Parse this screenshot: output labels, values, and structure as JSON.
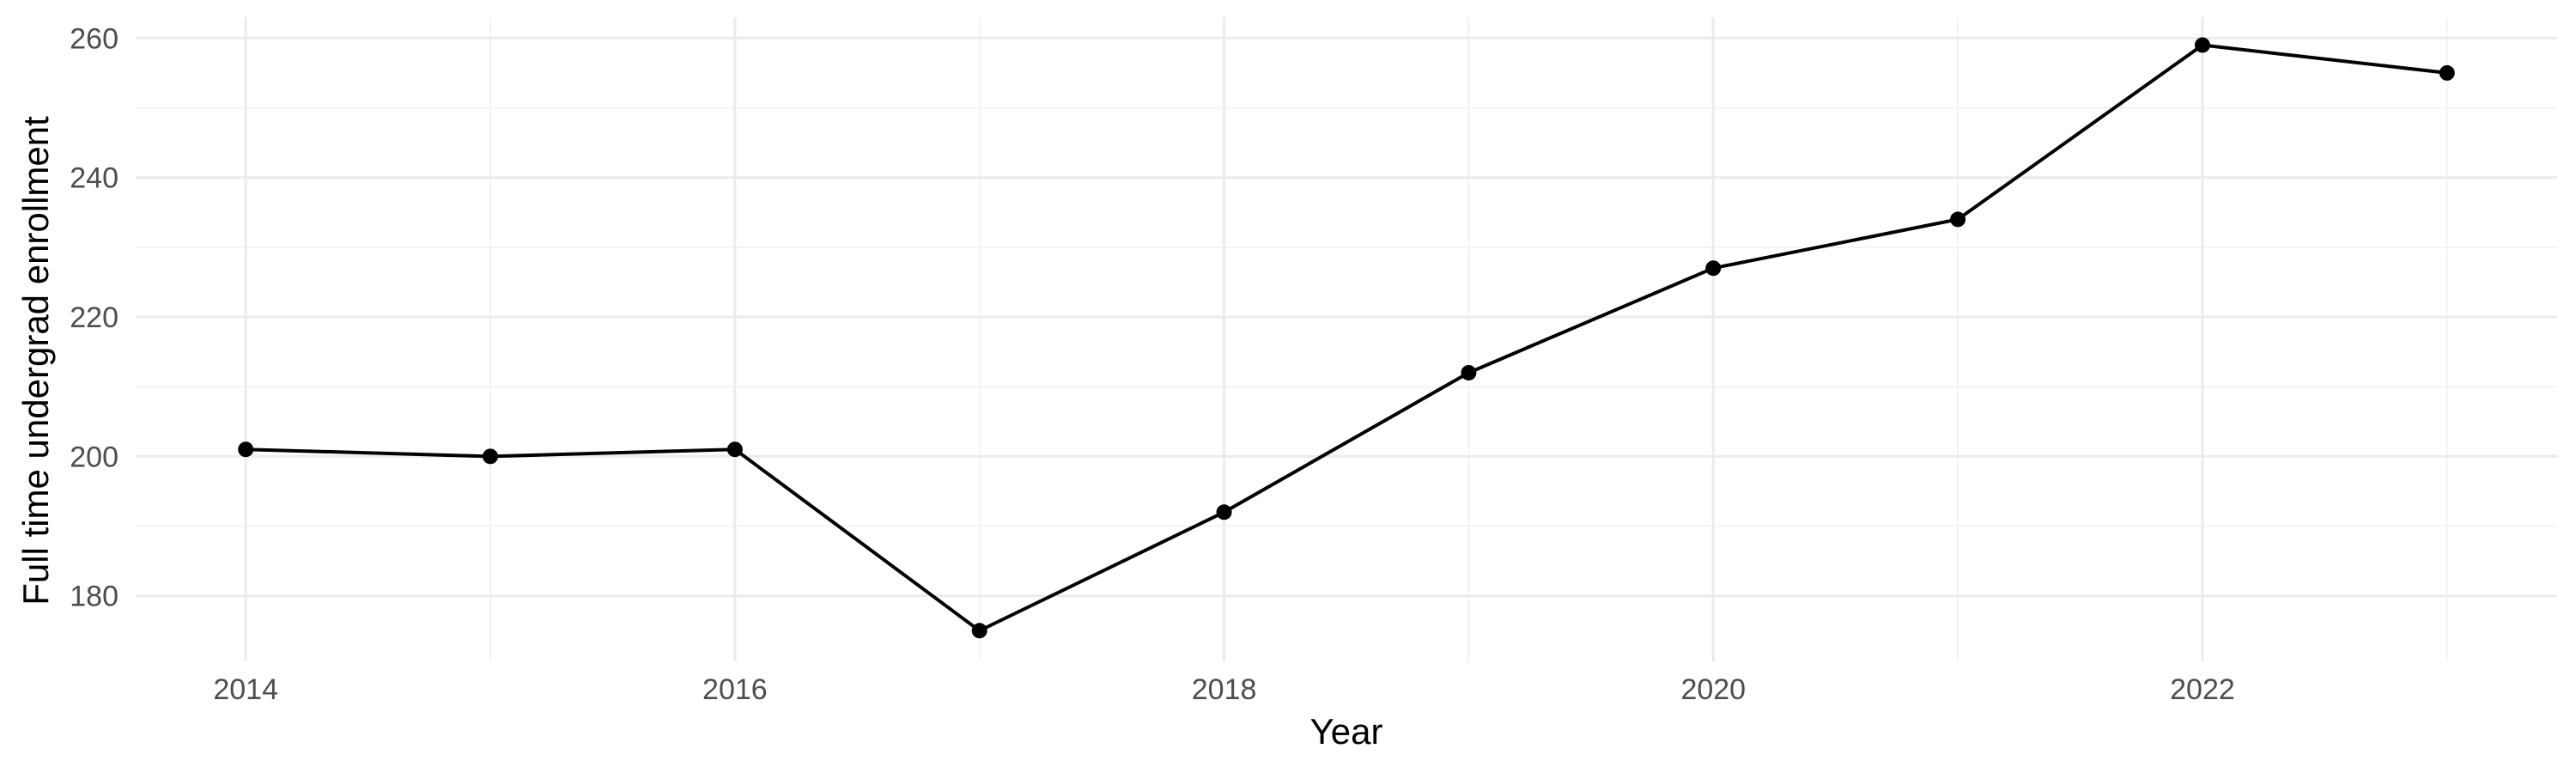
{
  "chart_data": {
    "type": "line",
    "title": "",
    "xlabel": "Year",
    "ylabel": "Full time undergrad enrollment",
    "x": [
      2014,
      2015,
      2016,
      2017,
      2018,
      2019,
      2020,
      2021,
      2022,
      2023
    ],
    "series": [
      {
        "values": [
          201,
          200,
          201,
          175,
          192,
          212,
          227,
          234,
          259,
          255
        ]
      }
    ],
    "xlim": [
      2013.55,
      2023.45
    ],
    "ylim": [
      170.6,
      263.0
    ],
    "x_ticks": [
      2014,
      2016,
      2018,
      2020,
      2022
    ],
    "x_tick_labels": [
      "2014",
      "2016",
      "2018",
      "2020",
      "2022"
    ],
    "y_ticks": [
      180,
      200,
      220,
      240,
      260
    ],
    "y_tick_labels": [
      "180",
      "200",
      "220",
      "240",
      "260"
    ],
    "grid": true,
    "legend": "none",
    "colors": {
      "line": "#000000",
      "grid": "#ebebeb",
      "tick_text": "#4d4d4d"
    }
  }
}
